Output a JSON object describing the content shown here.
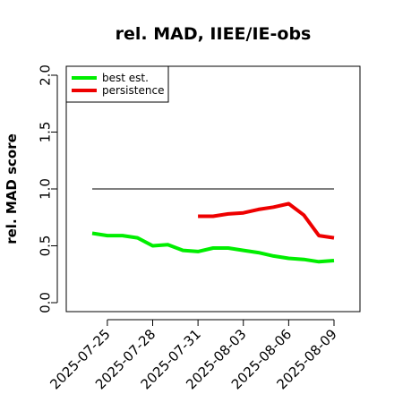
{
  "chart_data": {
    "type": "line",
    "title": "rel. MAD, IIEE/IE-obs",
    "xlabel": "",
    "ylabel": "rel. MAD score",
    "ylim": [
      0.0,
      2.0
    ],
    "yticks": [
      "0.0",
      "0.5",
      "1.0",
      "1.5",
      "2.0"
    ],
    "xticks": [
      "2025-07-25",
      "2025-07-28",
      "2025-07-31",
      "2025-08-03",
      "2025-08-06",
      "2025-08-09"
    ],
    "xlim": [
      "2025-07-24",
      "2025-08-09"
    ],
    "reference_line": 1.0,
    "legend_position": "top-left",
    "series": [
      {
        "name": "best est.",
        "color": "#00ee00",
        "x": [
          "2025-07-24",
          "2025-07-25",
          "2025-07-26",
          "2025-07-27",
          "2025-07-28",
          "2025-07-29",
          "2025-07-30",
          "2025-07-31",
          "2025-08-01",
          "2025-08-02",
          "2025-08-03",
          "2025-08-04",
          "2025-08-05",
          "2025-08-06",
          "2025-08-07",
          "2025-08-08",
          "2025-08-09"
        ],
        "values": [
          0.61,
          0.59,
          0.59,
          0.57,
          0.5,
          0.51,
          0.46,
          0.45,
          0.48,
          0.48,
          0.46,
          0.44,
          0.41,
          0.39,
          0.38,
          0.36,
          0.37
        ]
      },
      {
        "name": "persistence",
        "color": "#ee0000",
        "x": [
          "2025-07-31",
          "2025-08-01",
          "2025-08-02",
          "2025-08-03",
          "2025-08-04",
          "2025-08-05",
          "2025-08-06",
          "2025-08-07",
          "2025-08-08",
          "2025-08-09"
        ],
        "values": [
          0.76,
          0.76,
          0.78,
          0.79,
          0.82,
          0.84,
          0.87,
          0.77,
          0.59,
          0.57
        ]
      }
    ]
  }
}
